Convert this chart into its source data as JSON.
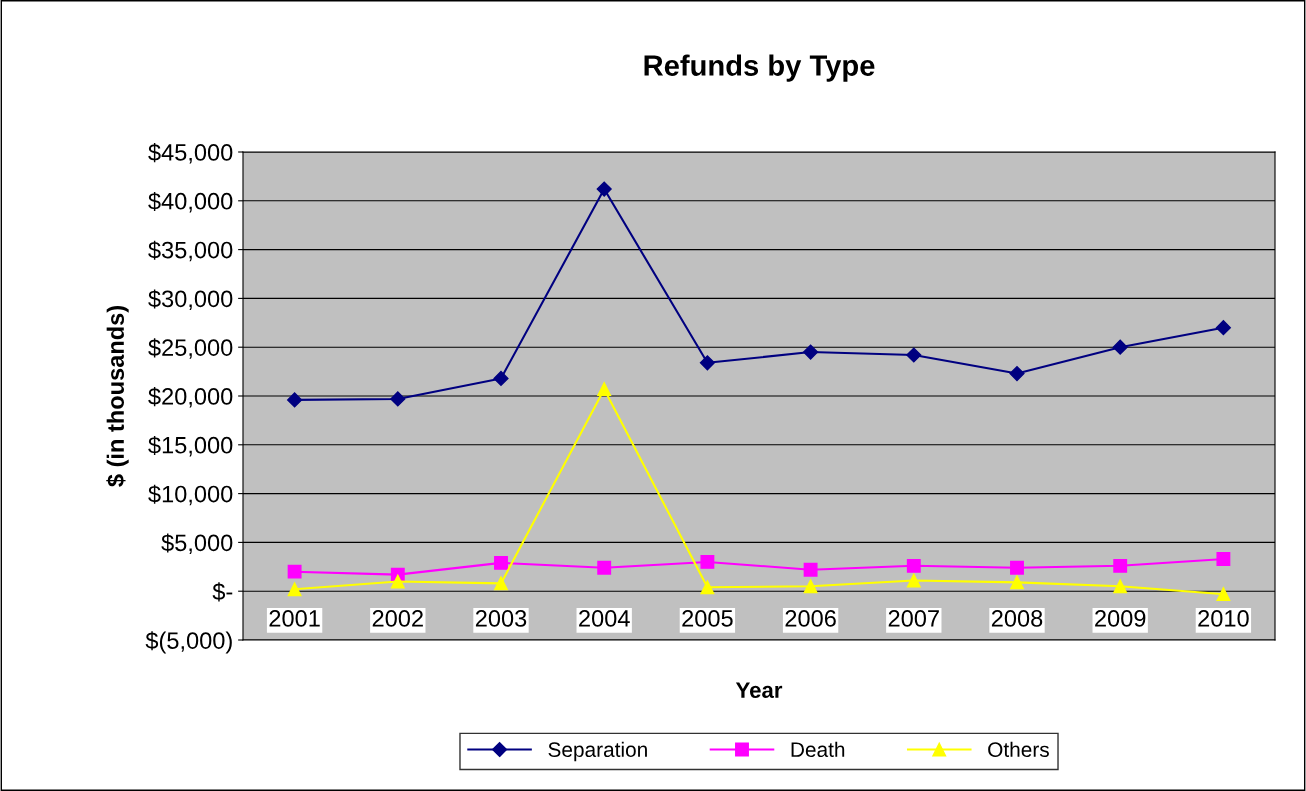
{
  "chart_data": {
    "type": "line",
    "title": "Refunds by Type",
    "xlabel": "Year",
    "ylabel": "$ (in thousands)",
    "categories": [
      "2001",
      "2002",
      "2003",
      "2004",
      "2005",
      "2006",
      "2007",
      "2008",
      "2009",
      "2010"
    ],
    "series": [
      {
        "name": "Separation",
        "color": "#000080",
        "marker": "diamond",
        "values": [
          19600,
          19700,
          21800,
          41200,
          23400,
          24500,
          24200,
          22300,
          25000,
          27000
        ]
      },
      {
        "name": "Death",
        "color": "#ff00ff",
        "marker": "square",
        "values": [
          2000,
          1700,
          2900,
          2400,
          3000,
          2200,
          2600,
          2400,
          2600,
          3300
        ]
      },
      {
        "name": "Others",
        "color": "#ffff00",
        "marker": "triangle",
        "values": [
          200,
          1000,
          800,
          20700,
          400,
          500,
          1100,
          900,
          500,
          -300
        ]
      }
    ],
    "ylim": [
      -5000,
      45000
    ],
    "yticks": [
      {
        "value": -5000,
        "label": "$(5,000)"
      },
      {
        "value": 0,
        "label": "$-"
      },
      {
        "value": 5000,
        "label": "$5,000"
      },
      {
        "value": 10000,
        "label": "$10,000"
      },
      {
        "value": 15000,
        "label": "$15,000"
      },
      {
        "value": 20000,
        "label": "$20,000"
      },
      {
        "value": 25000,
        "label": "$25,000"
      },
      {
        "value": 30000,
        "label": "$30,000"
      },
      {
        "value": 35000,
        "label": "$35,000"
      },
      {
        "value": 40000,
        "label": "$40,000"
      },
      {
        "value": 45000,
        "label": "$45,000"
      }
    ],
    "grid": "y",
    "legend": "bottom",
    "line_style": "solid"
  }
}
